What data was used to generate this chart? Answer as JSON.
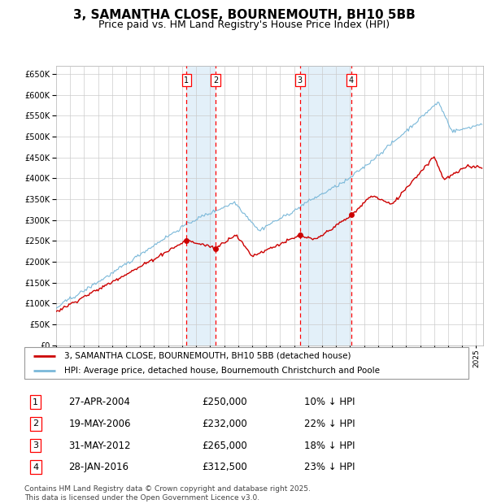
{
  "title": "3, SAMANTHA CLOSE, BOURNEMOUTH, BH10 5BB",
  "subtitle": "Price paid vs. HM Land Registry's House Price Index (HPI)",
  "title_fontsize": 11,
  "subtitle_fontsize": 9,
  "hpi_color": "#7ab8d9",
  "price_color": "#cc0000",
  "background_color": "#ffffff",
  "grid_color": "#cccccc",
  "transactions": [
    {
      "num": 1,
      "date": "27-APR-2004",
      "date_val": 2004.32,
      "price": 250000,
      "pct": "10%",
      "dir": "↓"
    },
    {
      "num": 2,
      "date": "19-MAY-2006",
      "date_val": 2006.38,
      "price": 232000,
      "pct": "22%",
      "dir": "↓"
    },
    {
      "num": 3,
      "date": "31-MAY-2012",
      "date_val": 2012.42,
      "price": 265000,
      "pct": "18%",
      "dir": "↓"
    },
    {
      "num": 4,
      "date": "28-JAN-2016",
      "date_val": 2016.08,
      "price": 312500,
      "pct": "23%",
      "dir": "↓"
    }
  ],
  "legend_entries": [
    "3, SAMANTHA CLOSE, BOURNEMOUTH, BH10 5BB (detached house)",
    "HPI: Average price, detached house, Bournemouth Christchurch and Poole"
  ],
  "footnote": "Contains HM Land Registry data © Crown copyright and database right 2025.\nThis data is licensed under the Open Government Licence v3.0.",
  "xmin": 1995,
  "xmax": 2025.5,
  "ylim": [
    0,
    670000
  ]
}
